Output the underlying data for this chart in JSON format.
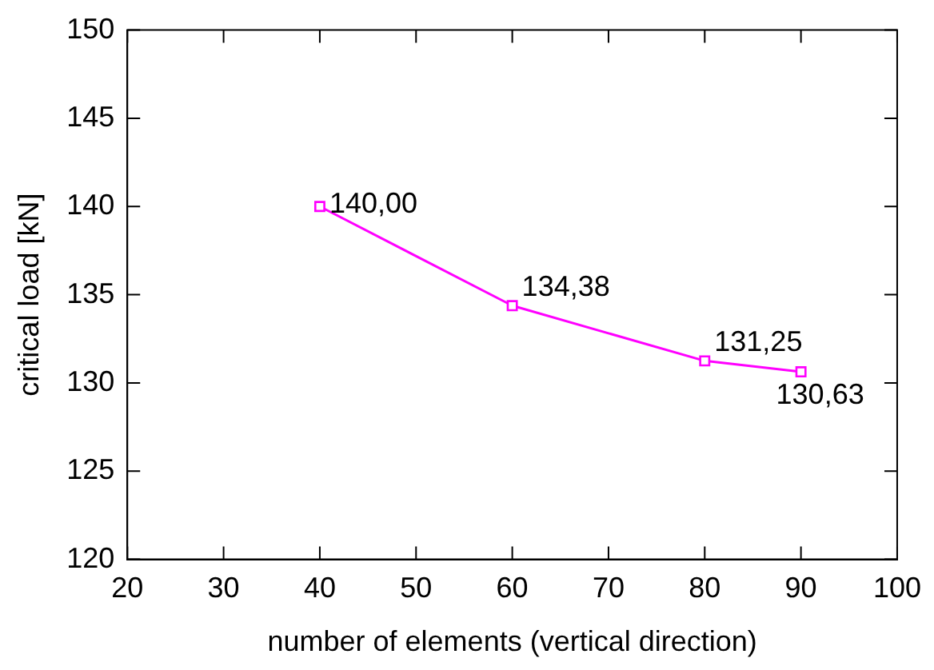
{
  "chart_data": {
    "type": "line",
    "xlabel": "number of elements (vertical direction)",
    "ylabel": "critical load [kN]",
    "x": [
      40,
      60,
      80,
      90
    ],
    "series": [
      {
        "color": "#ff00ff",
        "values": [
          140,
          134.38,
          131.25,
          130.63
        ],
        "value_labels": [
          "140,00",
          "134,38",
          "131,25",
          "130,63"
        ]
      }
    ],
    "xlim": [
      20,
      100
    ],
    "xticks": [
      20,
      30,
      40,
      50,
      60,
      70,
      80,
      90,
      100
    ],
    "ylim": [
      120,
      150
    ],
    "yticks": [
      120,
      125,
      130,
      135,
      140,
      145,
      150
    ],
    "grid": false,
    "legend": false,
    "marker": "square",
    "line_style": "solid"
  }
}
